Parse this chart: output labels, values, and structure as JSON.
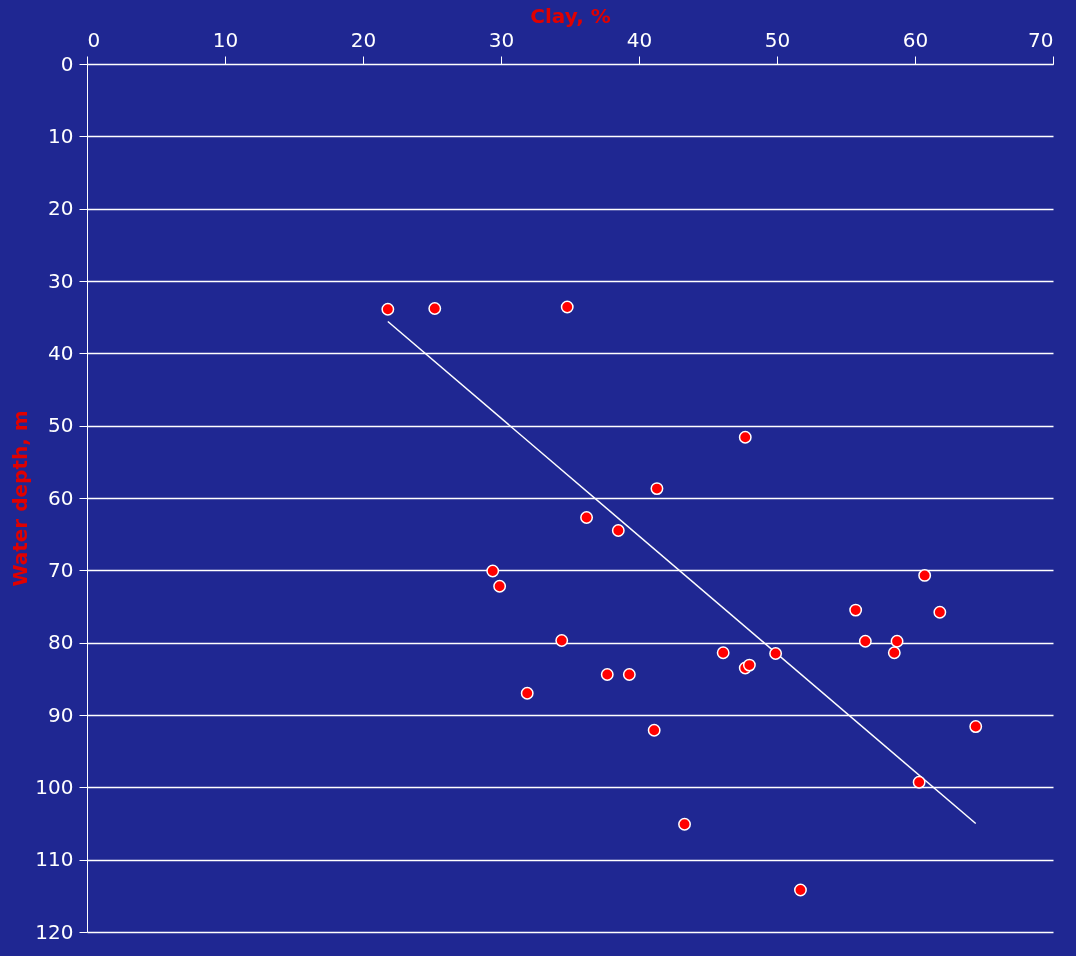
{
  "chart_data": {
    "type": "scatter",
    "xlabel": "Clay, %",
    "ylabel": "Water depth, m",
    "xlim": [
      0,
      70
    ],
    "xticks": [
      0,
      10,
      20,
      30,
      40,
      50,
      60,
      70
    ],
    "ylim": [
      120,
      0
    ],
    "yticks": [
      0,
      10,
      20,
      30,
      40,
      50,
      60,
      70,
      80,
      90,
      100,
      110,
      120
    ],
    "grid": "y",
    "marker": "circle",
    "series": [
      {
        "color": "#ff0000",
        "x": [
          21.8,
          25.2,
          34.8,
          47.7,
          41.3,
          36.2,
          38.5,
          29.4,
          29.9,
          60.7,
          55.7,
          61.8,
          34.4,
          56.4,
          58.7,
          58.5,
          46.1,
          49.9,
          47.7,
          48.0,
          37.7,
          39.3,
          31.9,
          41.1,
          64.4,
          60.3,
          43.3,
          51.7
        ],
        "values": [
          33.9,
          33.8,
          33.6,
          51.6,
          58.7,
          62.7,
          64.5,
          70.1,
          72.2,
          70.7,
          75.5,
          75.8,
          79.7,
          79.8,
          79.8,
          81.4,
          81.4,
          81.5,
          83.5,
          83.1,
          84.4,
          84.4,
          87.0,
          92.1,
          91.6,
          99.3,
          105.1,
          114.2
        ]
      },
      {
        "type": "line",
        "color": "#ffffff",
        "line_style": "solid",
        "marker": "none",
        "x": [
          21.8,
          64.4
        ],
        "values": [
          35.6,
          105.0
        ]
      }
    ]
  }
}
